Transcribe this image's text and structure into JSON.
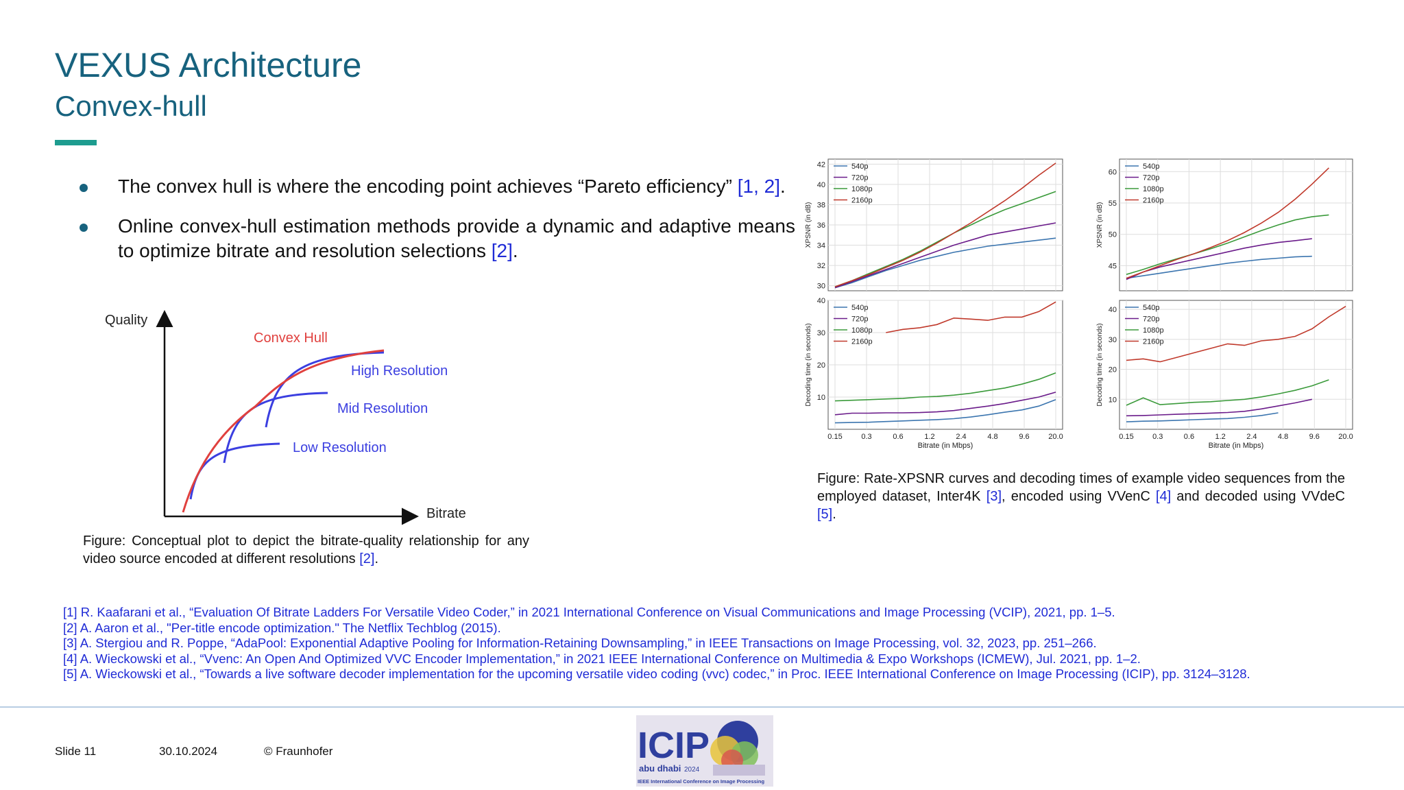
{
  "header": {
    "title": "VEXUS Architecture",
    "subtitle": "Convex-hull"
  },
  "accent_color": "#1d9c8f",
  "bullets": [
    {
      "text": "The convex hull is where the encoding point achieves “Pareto efficiency” ",
      "cite": "[1, 2]",
      "end": "."
    },
    {
      "text": "Online convex-hull estimation methods provide a dynamic and adaptive means to optimize bitrate and resolution selections ",
      "cite": "[2]",
      "end": "."
    }
  ],
  "concept_figure": {
    "y_label": "Quality",
    "x_label": "Bitrate",
    "curves": [
      {
        "label": "Convex Hull",
        "color": "#e0403e"
      },
      {
        "label": "High Resolution",
        "color": "#3b3fe0"
      },
      {
        "label": "Mid Resolution",
        "color": "#3b3fe0"
      },
      {
        "label": "Low Resolution",
        "color": "#3b3fe0"
      }
    ],
    "caption": "Figure: Conceptual plot to depict the bitrate-quality relationship for any video source encoded at different resolutions ",
    "caption_cite": "[2]",
    "caption_end": "."
  },
  "result_figure": {
    "caption": "Figure: Rate-XPSNR curves and decoding times of example video sequences from the employed dataset, Inter4K ",
    "cite3": "[3]",
    "mid1": ", encoded using VVenC ",
    "cite4": "[4]",
    "mid2": " and decoded using VVdeC ",
    "cite5": "[5]",
    "end": "."
  },
  "chart_data": [
    {
      "type": "line",
      "name": "psnr-left",
      "xlabel": "",
      "ylabel": "XPSNR (in dB)",
      "x": [
        1,
        2,
        3,
        4,
        5,
        6,
        7,
        8,
        9,
        10,
        11,
        12,
        13,
        14
      ],
      "xticks": [],
      "ylim": [
        29.5,
        42.5
      ],
      "yticks": [
        30,
        32,
        34,
        36,
        38,
        40,
        42
      ],
      "grid": true,
      "legend": "top-left",
      "series": [
        {
          "name": "540p",
          "color": "#3b75af",
          "values": [
            29.8,
            30.3,
            30.9,
            31.5,
            32.0,
            32.5,
            32.9,
            33.3,
            33.6,
            33.9,
            34.1,
            34.3,
            34.5,
            34.7
          ]
        },
        {
          "name": "720p",
          "color": "#6a1b8a",
          "values": [
            29.8,
            30.4,
            31.0,
            31.6,
            32.2,
            32.8,
            33.4,
            34.0,
            34.5,
            35.0,
            35.3,
            35.6,
            35.9,
            36.2
          ]
        },
        {
          "name": "1080p",
          "color": "#3a9a3a",
          "values": [
            29.9,
            30.5,
            31.2,
            31.9,
            32.6,
            33.4,
            34.3,
            35.2,
            36.0,
            36.8,
            37.5,
            38.1,
            38.7,
            39.3
          ]
        },
        {
          "name": "2160p",
          "color": "#c0392b",
          "values": [
            29.9,
            30.5,
            31.1,
            31.8,
            32.5,
            33.3,
            34.2,
            35.2,
            36.2,
            37.3,
            38.4,
            39.6,
            40.9,
            42.1
          ]
        }
      ]
    },
    {
      "type": "line",
      "name": "psnr-right",
      "xlabel": "",
      "ylabel": "XPSNR (in dB)",
      "x": [
        1,
        2,
        3,
        4,
        5,
        6,
        7,
        8,
        9,
        10,
        11,
        12,
        13,
        14
      ],
      "xticks": [],
      "ylim": [
        41,
        62
      ],
      "yticks": [
        45,
        50,
        55,
        60
      ],
      "grid": true,
      "legend": "top-left",
      "series": [
        {
          "name": "540p",
          "color": "#3b75af",
          "values": [
            43.0,
            43.4,
            43.8,
            44.2,
            44.6,
            45.0,
            45.4,
            45.7,
            46.0,
            46.2,
            46.4,
            46.5,
            null,
            null
          ]
        },
        {
          "name": "720p",
          "color": "#6a1b8a",
          "values": [
            42.8,
            44.0,
            44.8,
            45.4,
            46.0,
            46.6,
            47.2,
            47.8,
            48.3,
            48.7,
            49.0,
            49.3,
            null,
            null
          ]
        },
        {
          "name": "1080p",
          "color": "#3a9a3a",
          "values": [
            43.6,
            44.4,
            45.3,
            46.1,
            46.9,
            47.7,
            48.6,
            49.6,
            50.6,
            51.5,
            52.3,
            52.8,
            53.1,
            null
          ]
        },
        {
          "name": "2160p",
          "color": "#c0392b",
          "values": [
            43.0,
            44.0,
            45.0,
            46.0,
            46.9,
            47.9,
            49.0,
            50.3,
            51.8,
            53.5,
            55.6,
            58.0,
            60.6,
            null
          ]
        }
      ]
    },
    {
      "type": "line",
      "name": "decode-left",
      "xlabel": "Bitrate (in Mbps)",
      "ylabel": "Decoding time (in seconds)",
      "x": [
        1,
        2,
        3,
        4,
        5,
        6,
        7,
        8,
        9,
        10,
        11,
        12,
        13,
        14
      ],
      "xticks": [
        "0.15",
        "0.3",
        "0.6",
        "1.2",
        "2.4",
        "4.8",
        "9.6",
        "20.0"
      ],
      "ylim": [
        0,
        40
      ],
      "yticks": [
        10,
        20,
        30,
        40
      ],
      "grid": true,
      "legend": "top-left",
      "series": [
        {
          "name": "540p",
          "color": "#3b75af",
          "values": [
            2.0,
            2.1,
            2.2,
            2.4,
            2.6,
            2.8,
            3.0,
            3.3,
            3.8,
            4.5,
            5.3,
            6.0,
            7.2,
            9.2
          ]
        },
        {
          "name": "720p",
          "color": "#6a1b8a",
          "values": [
            4.5,
            5.0,
            5.0,
            5.1,
            5.1,
            5.2,
            5.4,
            5.8,
            6.5,
            7.2,
            8.0,
            9.0,
            10.0,
            11.5
          ]
        },
        {
          "name": "1080p",
          "color": "#3a9a3a",
          "values": [
            8.8,
            9.0,
            9.2,
            9.4,
            9.6,
            10.0,
            10.2,
            10.6,
            11.2,
            12.0,
            12.8,
            14.0,
            15.5,
            17.5
          ]
        },
        {
          "name": "2160p",
          "color": "#c0392b",
          "values": [
            null,
            null,
            null,
            30.0,
            31.0,
            31.5,
            32.5,
            34.5,
            34.2,
            33.8,
            34.8,
            34.8,
            36.5,
            39.5
          ]
        }
      ]
    },
    {
      "type": "line",
      "name": "decode-right",
      "xlabel": "Bitrate (in Mbps)",
      "ylabel": "Decoding time (in seconds)",
      "x": [
        1,
        2,
        3,
        4,
        5,
        6,
        7,
        8,
        9,
        10,
        11,
        12,
        13,
        14
      ],
      "xticks": [
        "0.15",
        "0.3",
        "0.6",
        "1.2",
        "2.4",
        "4.8",
        "9.6",
        "20.0"
      ],
      "ylim": [
        0,
        43
      ],
      "yticks": [
        10,
        20,
        30,
        40
      ],
      "grid": true,
      "legend": "top-left",
      "series": [
        {
          "name": "540p",
          "color": "#3b75af",
          "values": [
            2.5,
            2.7,
            2.8,
            3.0,
            3.2,
            3.4,
            3.6,
            4.0,
            4.6,
            5.5,
            null,
            null,
            null,
            null
          ]
        },
        {
          "name": "720p",
          "color": "#6a1b8a",
          "values": [
            4.5,
            4.6,
            4.8,
            5.0,
            5.2,
            5.4,
            5.6,
            6.0,
            6.8,
            7.8,
            8.8,
            10.0,
            null,
            null
          ]
        },
        {
          "name": "1080p",
          "color": "#3a9a3a",
          "values": [
            8.0,
            10.5,
            8.2,
            8.6,
            9.0,
            9.2,
            9.6,
            10.0,
            10.8,
            11.8,
            13.0,
            14.5,
            16.5,
            null
          ]
        },
        {
          "name": "2160p",
          "color": "#c0392b",
          "values": [
            23.0,
            23.5,
            22.5,
            24.0,
            25.5,
            27.0,
            28.5,
            28.0,
            29.5,
            30.0,
            31.0,
            33.5,
            37.5,
            41.0
          ]
        }
      ]
    }
  ],
  "references": [
    "[1] R. Kaafarani et al., “Evaluation Of Bitrate Ladders For Versatile Video Coder,” in 2021 International Conference on Visual Communications and Image Processing (VCIP), 2021, pp. 1–5.",
    "[2] A. Aaron et al., \"Per-title encode optimization.\" The Netflix Techblog (2015).",
    "[3] A. Stergiou and R. Poppe, “AdaPool: Exponential Adaptive Pooling for Information-Retaining Downsampling,” in IEEE Transactions on Image Processing, vol. 32, 2023, pp. 251–266.",
    "[4] A. Wieckowski et al., “Vvenc: An Open And Optimized VVC Encoder Implementation,” in 2021 IEEE International Conference on Multimedia & Expo Workshops (ICMEW), Jul. 2021, pp. 1–2.",
    "[5] A. Wieckowski et al., “Towards a live software decoder implementation for the upcoming versatile video coding (vvc) codec,” in Proc. IEEE International Conference on Image Processing (ICIP), pp. 3124–3128."
  ],
  "footer": {
    "slide": "Slide 11",
    "date": "30.10.2024",
    "copyright": "© Fraunhofer"
  },
  "logo": {
    "brand": "ICIP",
    "city": "abu dhabi",
    "year": "2024",
    "tagline": "IEEE International Conference on Image Processing"
  }
}
